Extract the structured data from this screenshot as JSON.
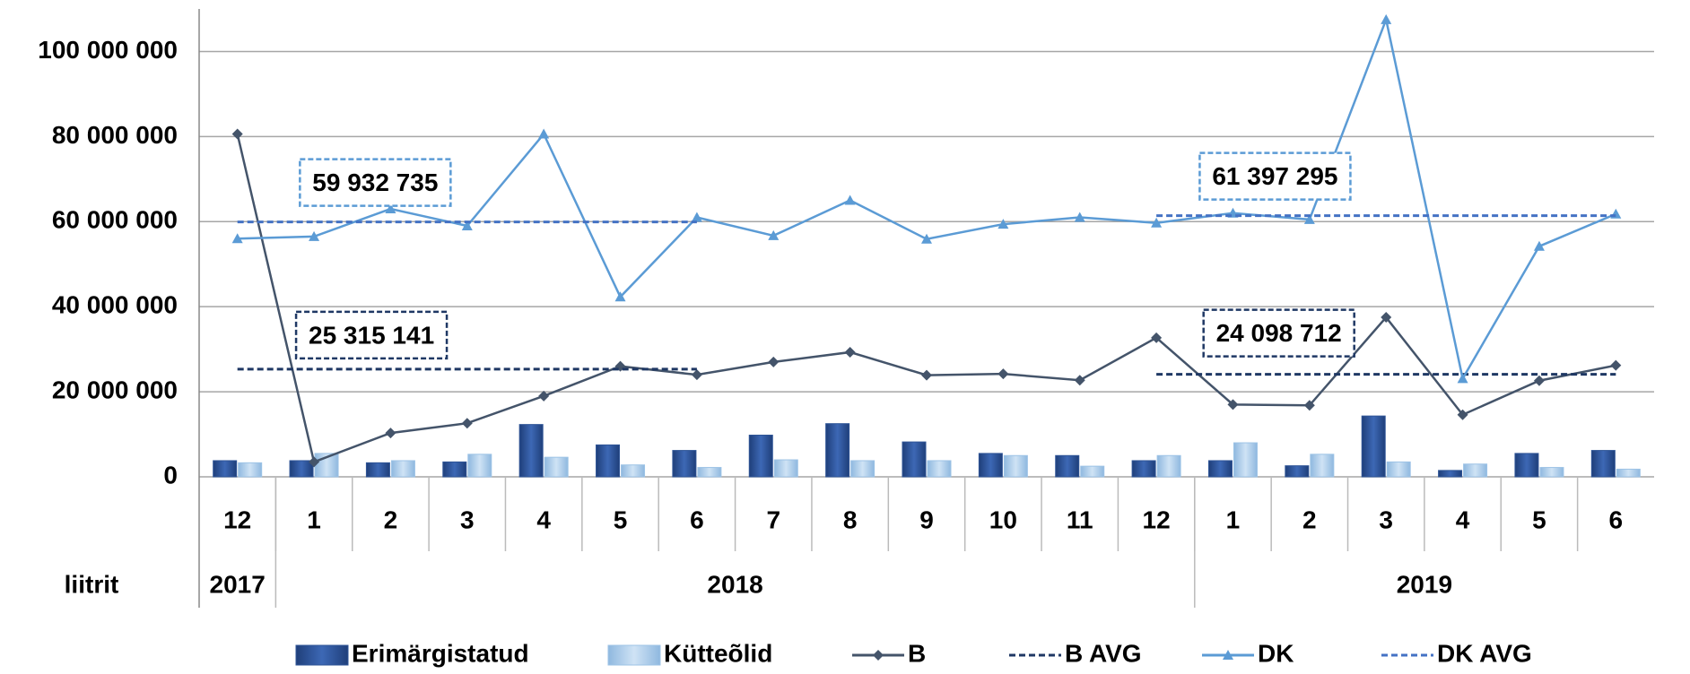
{
  "chart_data": {
    "type": "bar-line",
    "categories": [
      "12",
      "1",
      "2",
      "3",
      "4",
      "5",
      "6",
      "7",
      "8",
      "9",
      "10",
      "11",
      "12",
      "1",
      "2",
      "3",
      "4",
      "5",
      "6"
    ],
    "years": [
      "2017",
      "2018",
      "2019"
    ],
    "unit_label": "liitrit",
    "ylim": [
      0,
      110000000
    ],
    "yticks": [
      0,
      {
        "value": 20000000,
        "label": "20 000 000"
      },
      {
        "value": 40000000,
        "label": "40 000 000"
      },
      {
        "value": 60000000,
        "label": "60 000 000"
      },
      {
        "value": 80000000,
        "label": "80 000 000"
      },
      {
        "value": 100000000,
        "label": "100 000 000"
      }
    ],
    "grid": true,
    "legend": "bottom",
    "series": [
      {
        "name": "Erimärgistatud",
        "kind": "bar",
        "color": "#2f5597",
        "values": [
          3800000,
          3800000,
          3300000,
          3500000,
          12300000,
          7500000,
          6200000,
          9800000,
          12500000,
          8200000,
          5500000,
          5000000,
          3800000,
          3800000,
          2600000,
          14300000,
          1500000,
          5500000,
          6200000
        ]
      },
      {
        "name": "Kütteõlid",
        "kind": "bar",
        "color": "#9dc3e6",
        "values": [
          3300000,
          5500000,
          3800000,
          5300000,
          4600000,
          2800000,
          2200000,
          4000000,
          3800000,
          3800000,
          5000000,
          2500000,
          5000000,
          8000000,
          5300000,
          3500000,
          3000000,
          2200000,
          1800000
        ]
      },
      {
        "name": "B",
        "kind": "line",
        "marker": "diamond",
        "color": "#44546a",
        "values": [
          80600000,
          3500000,
          10300000,
          12600000,
          19000000,
          26000000,
          24000000,
          27000000,
          29300000,
          23900000,
          24200000,
          22700000,
          32700000,
          17000000,
          16800000,
          37500000,
          14600000,
          22600000,
          26200000
        ]
      },
      {
        "name": "B AVG",
        "kind": "dashed",
        "color": "#1f3864",
        "values": [
          25315141,
          25315141,
          25315141,
          25315141,
          25315141,
          25315141,
          25315141,
          null,
          null,
          null,
          null,
          null,
          24098712,
          24098712,
          24098712,
          24098712,
          24098712,
          24098712,
          24098712
        ]
      },
      {
        "name": "DK",
        "kind": "line",
        "marker": "triangle",
        "color": "#5b9bd5",
        "values": [
          56000000,
          56500000,
          63000000,
          59000000,
          80600000,
          42300000,
          61000000,
          56700000,
          65000000,
          55900000,
          59400000,
          61000000,
          59700000,
          62000000,
          60500000,
          107500000,
          23100000,
          54200000,
          61800000
        ]
      },
      {
        "name": "DK AVG",
        "kind": "dashed",
        "color": "#4472c4",
        "values": [
          59932735,
          59932735,
          59932735,
          59932735,
          59932735,
          59932735,
          59932735,
          null,
          null,
          null,
          null,
          null,
          61397295,
          61397295,
          61397295,
          61397295,
          61397295,
          61397295,
          61397295
        ]
      }
    ],
    "annotations": [
      {
        "text": "59 932 735",
        "color": "#5b9bd5"
      },
      {
        "text": "25 315 141",
        "color": "#1f3864"
      },
      {
        "text": "61 397 295",
        "color": "#5b9bd5"
      },
      {
        "text": "24 098 712",
        "color": "#1f3864"
      }
    ]
  }
}
